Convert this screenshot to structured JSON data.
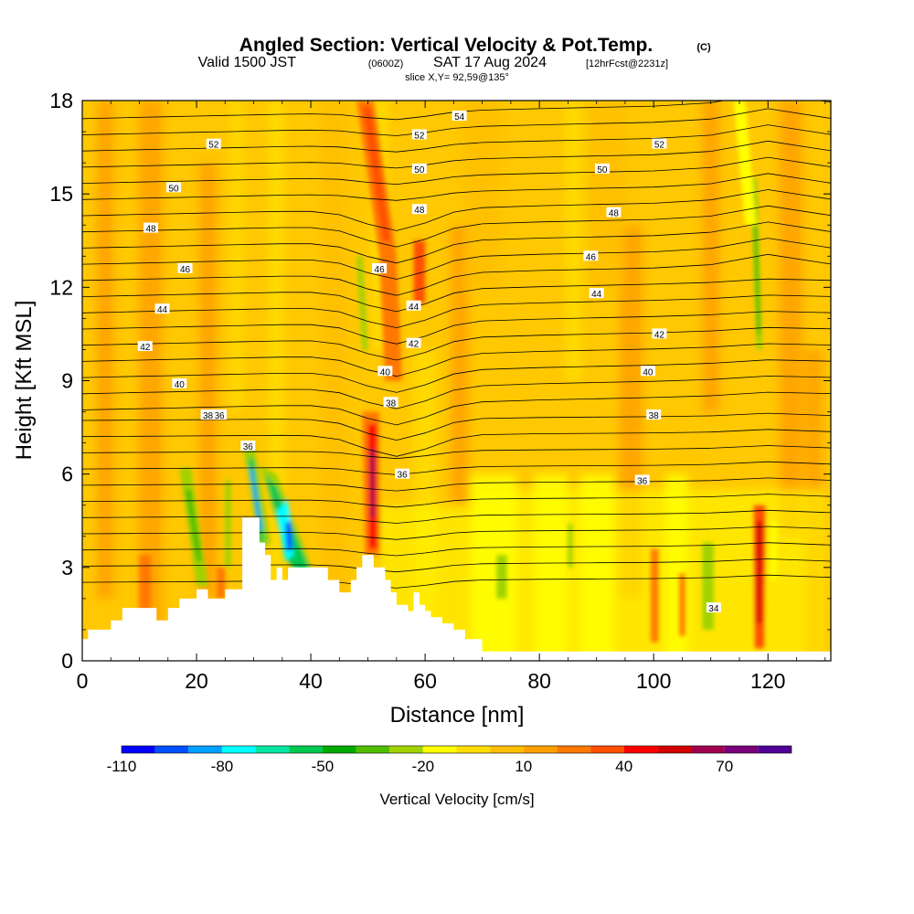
{
  "title": {
    "main": "Angled Section: Vertical Velocity & Pot.Temp.",
    "main_unit": "(C)",
    "valid_prefix": "Valid 1500 JST",
    "valid_z": "(0600Z)",
    "valid_date": "SAT 17 Aug 2024",
    "valid_fcst": "[12hrFcst@2231z]",
    "slice": "slice X,Y= 92,59@135°"
  },
  "chart_data": {
    "type": "heatmap",
    "xlabel": "Distance [nm]",
    "ylabel": "Height [Kft MSL]",
    "xlim": [
      0,
      131
    ],
    "ylim": [
      0,
      18
    ],
    "x_ticks": [
      "0",
      "20",
      "40",
      "60",
      "80",
      "100",
      "120"
    ],
    "y_ticks": [
      "0",
      "3",
      "6",
      "9",
      "12",
      "15",
      "18"
    ],
    "terrain": {
      "x": [
        0,
        1,
        1,
        5,
        5,
        7,
        7,
        13,
        13,
        15,
        15,
        17,
        17,
        20,
        20,
        22,
        22,
        25,
        25,
        28,
        28,
        31,
        31,
        32,
        32,
        33,
        33,
        34,
        34,
        35,
        35,
        36,
        36,
        43,
        43,
        45,
        45,
        47,
        47,
        48,
        48,
        49,
        49,
        51,
        51,
        53,
        53,
        54,
        54,
        55,
        55,
        57,
        57,
        58,
        58,
        59,
        59,
        60,
        60,
        61,
        61,
        63,
        63,
        65,
        65,
        67,
        67,
        70,
        70,
        131
      ],
      "h": [
        0.7,
        0.7,
        1.0,
        1.0,
        1.3,
        1.3,
        1.7,
        1.7,
        1.3,
        1.3,
        1.7,
        1.7,
        2.0,
        2.0,
        2.3,
        2.3,
        2.0,
        2.0,
        2.3,
        2.3,
        4.6,
        4.6,
        3.8,
        3.8,
        3.4,
        3.4,
        2.6,
        2.6,
        3.0,
        3.0,
        2.6,
        2.6,
        3.0,
        3.0,
        2.6,
        2.6,
        2.2,
        2.2,
        2.6,
        2.6,
        3.0,
        3.0,
        3.4,
        3.4,
        3.0,
        3.0,
        2.6,
        2.6,
        2.2,
        2.2,
        1.8,
        1.8,
        1.6,
        1.6,
        2.2,
        2.2,
        1.8,
        1.8,
        1.6,
        1.6,
        1.4,
        1.4,
        1.2,
        1.2,
        1.0,
        1.0,
        0.7,
        0.7,
        0.3,
        0.3
      ]
    },
    "isentropes": {
      "labels": [
        "34",
        "36",
        "36",
        "36",
        "36",
        "38",
        "38",
        "38",
        "40",
        "40",
        "40",
        "42",
        "42",
        "42",
        "44",
        "44",
        "44",
        "46",
        "46",
        "46",
        "48",
        "48",
        "48",
        "50",
        "50",
        "50",
        "52",
        "52",
        "52",
        "54"
      ]
    },
    "colorbar": {
      "label": "Vertical Velocity [cm/s]",
      "tick_labels": [
        "-110",
        "-80",
        "-50",
        "-20",
        "10",
        "40",
        "70"
      ],
      "colors": [
        "#0000ff",
        "#0050ff",
        "#00a0ff",
        "#00ffff",
        "#00e6a0",
        "#00c850",
        "#00aa00",
        "#50be00",
        "#a0d200",
        "#ffff00",
        "#ffdc00",
        "#ffbe00",
        "#ffa000",
        "#ff7800",
        "#ff5000",
        "#ff0000",
        "#d20000",
        "#a00050",
        "#780078",
        "#500096"
      ]
    },
    "features": [
      {
        "name": "updraft",
        "x": 50.5,
        "y": 5.8,
        "value": 55
      },
      {
        "name": "updraft",
        "x": 118.5,
        "y": 2.8,
        "value": 40
      },
      {
        "name": "downdraft",
        "x": 36,
        "y": 4.0,
        "value": -80
      },
      {
        "name": "downdraft",
        "x": 30,
        "y": 5.0,
        "value": -60
      }
    ]
  }
}
